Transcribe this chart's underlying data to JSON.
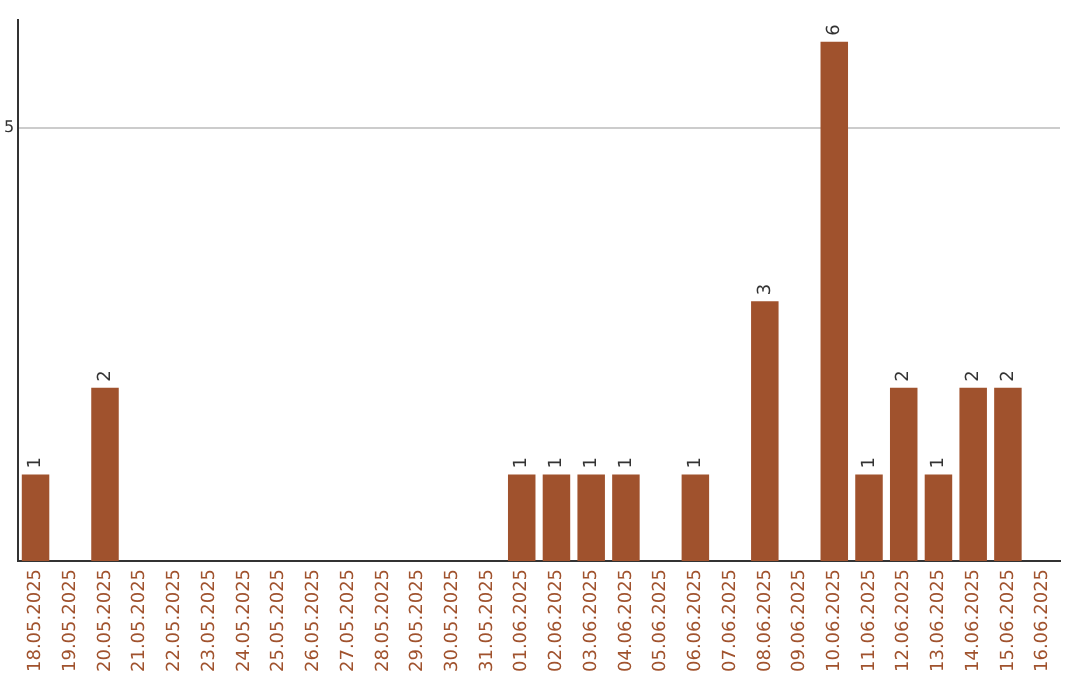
{
  "chart_data": {
    "type": "bar",
    "categories": [
      "18.05.2025",
      "19.05.2025",
      "20.05.2025",
      "21.05.2025",
      "22.05.2025",
      "23.05.2025",
      "24.05.2025",
      "25.05.2025",
      "26.05.2025",
      "27.05.2025",
      "28.05.2025",
      "29.05.2025",
      "30.05.2025",
      "31.05.2025",
      "01.06.2025",
      "02.06.2025",
      "03.06.2025",
      "04.06.2025",
      "05.06.2025",
      "06.06.2025",
      "07.06.2025",
      "08.06.2025",
      "09.06.2025",
      "10.06.2025",
      "11.06.2025",
      "12.06.2025",
      "13.06.2025",
      "14.06.2025",
      "15.06.2025",
      "16.06.2025"
    ],
    "values": [
      1,
      0,
      2,
      0,
      0,
      0,
      0,
      0,
      0,
      0,
      0,
      0,
      0,
      0,
      1,
      1,
      1,
      1,
      0,
      1,
      0,
      3,
      0,
      6,
      1,
      2,
      1,
      2,
      2,
      0
    ],
    "value_labels": [
      "1",
      null,
      "2",
      null,
      null,
      null,
      null,
      null,
      null,
      null,
      null,
      null,
      null,
      null,
      "1",
      "1",
      "1",
      "1",
      null,
      "1",
      null,
      "3",
      null,
      "6",
      "1",
      "2",
      "1",
      "2",
      "2",
      null
    ],
    "color": "#a0522d",
    "ylim": [
      0,
      6.25
    ],
    "yticks": [
      5
    ],
    "grid": "y",
    "legend": false
  }
}
